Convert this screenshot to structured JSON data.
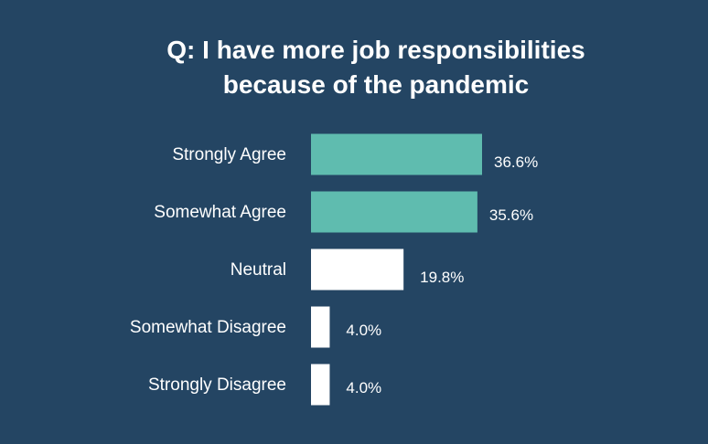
{
  "chart_data": {
    "type": "bar",
    "orientation": "horizontal",
    "title": "Q: I have more job responsibilities\nbecause of the pandemic",
    "categories": [
      "Strongly Agree",
      "Somewhat Agree",
      "Neutral",
      "Somewhat Disagree",
      "Strongly Disagree"
    ],
    "values": [
      36.6,
      35.6,
      19.8,
      4.0,
      4.0
    ],
    "value_labels": [
      "36.6%",
      "35.6%",
      "19.8%",
      "4.0%",
      "4.0%"
    ],
    "bar_colors": [
      "#5fbcaf",
      "#5fbcaf",
      "#ffffff",
      "#ffffff",
      "#ffffff"
    ],
    "xlim": [
      0,
      36.6
    ],
    "xlabel": "",
    "ylabel": "",
    "grid": false,
    "legend": "none"
  },
  "colors": {
    "background": "#244563",
    "text": "#ffffff"
  }
}
